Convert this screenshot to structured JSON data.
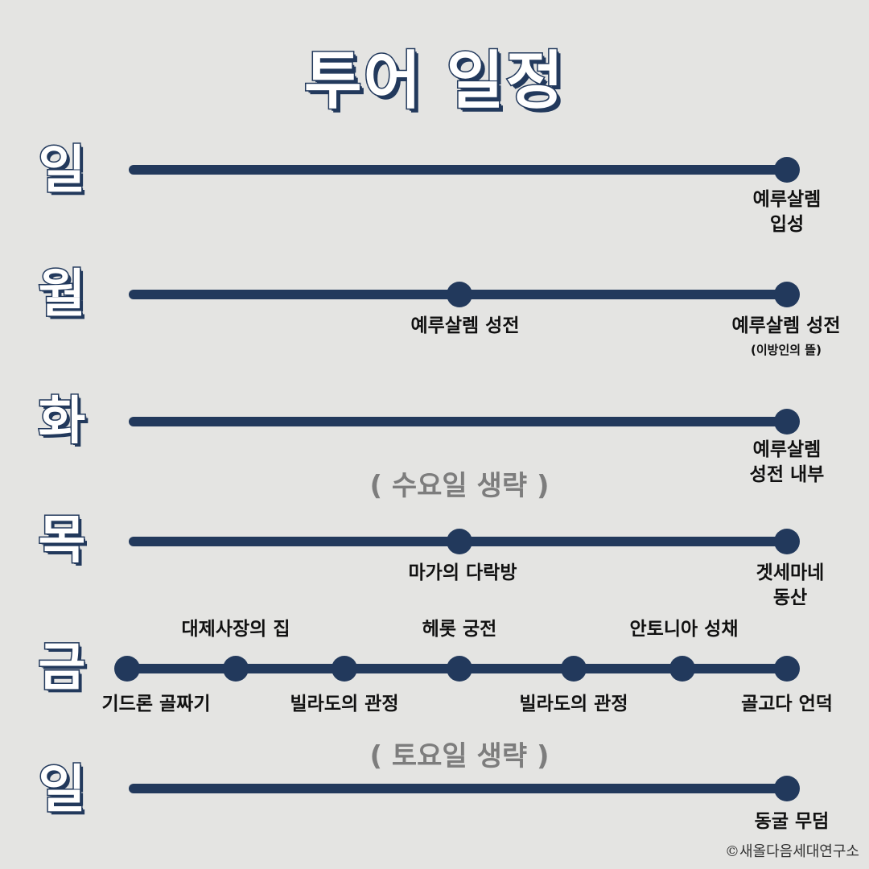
{
  "title": "투어 일정",
  "days": [
    {
      "day": "일",
      "stops": [
        {
          "label": "예루살렘\n입성",
          "note": ""
        }
      ]
    },
    {
      "day": "월",
      "stops": [
        {
          "label": "예루살렘 성전",
          "note": ""
        },
        {
          "label": "예루살렘 성전",
          "note": "(이방인의 뜰)"
        }
      ]
    },
    {
      "day": "화",
      "stops": [
        {
          "label": "예루살렘\n성전 내부",
          "note": ""
        }
      ]
    },
    {
      "day": "목",
      "stops": [
        {
          "label": "마가의 다락방",
          "note": ""
        },
        {
          "label": "겟세마네\n동산",
          "note": ""
        }
      ]
    },
    {
      "day": "금",
      "stops": [
        {
          "label": "기드론 골짜기",
          "note": ""
        },
        {
          "label": "대제사장의 집",
          "note": ""
        },
        {
          "label": "빌라도의 관정",
          "note": ""
        },
        {
          "label": "헤롯 궁전",
          "note": ""
        },
        {
          "label": "빌라도의 관정",
          "note": ""
        },
        {
          "label": "안토니아 성채",
          "note": ""
        },
        {
          "label": "골고다 언덕",
          "note": ""
        }
      ]
    },
    {
      "day": "일",
      "stops": [
        {
          "label": "동굴 무덤",
          "note": ""
        }
      ]
    }
  ],
  "omitted": [
    "( 수요일 생략 )",
    "( 토요일 생략 )"
  ],
  "copyright": "©새올다음세대연구소",
  "colors": {
    "background": "#e4e4e2",
    "navy": "#22395c",
    "omitted_text": "#7d7d7d"
  }
}
